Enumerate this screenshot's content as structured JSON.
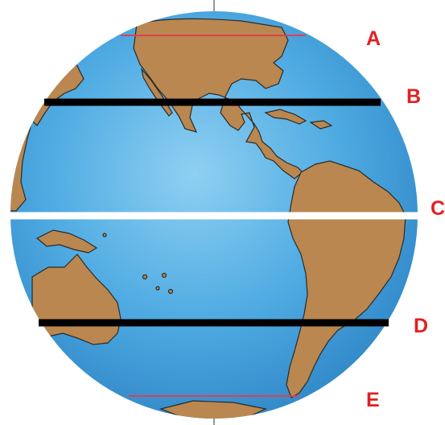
{
  "figure": {
    "colors": {
      "ocean": "#4aa6e0",
      "ocean_light": "#8fd0f2",
      "land": "#b9874f",
      "land_outline": "#2a2a2a",
      "label_red": "#e02020",
      "thin_line": "#e04050",
      "thick_line": "#000000",
      "equator_line": "#ffffff"
    },
    "latitude_lines": [
      {
        "id": "A",
        "label": "A",
        "style": "thin-red"
      },
      {
        "id": "B",
        "label": "B",
        "style": "thick-black"
      },
      {
        "id": "C",
        "label": "C",
        "style": "thick-white"
      },
      {
        "id": "D",
        "label": "D",
        "style": "thick-black"
      },
      {
        "id": "E",
        "label": "E",
        "style": "thin-red"
      }
    ]
  }
}
